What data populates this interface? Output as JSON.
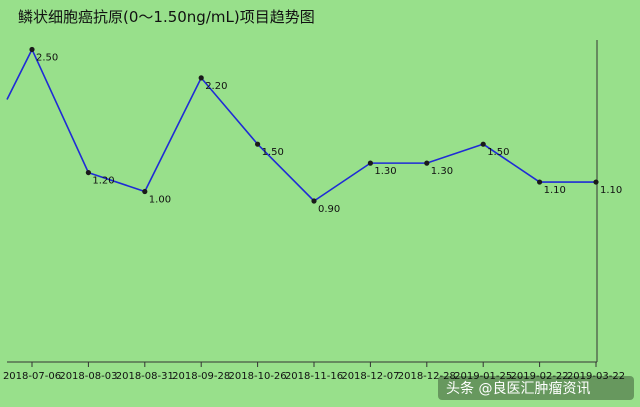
{
  "chart_data": {
    "type": "line",
    "title": "鳞状细胞癌抗原(0～1.50ng/mL)项目趋势图",
    "x": [
      "2018-07-06",
      "2018-08-03",
      "2018-08-31",
      "2018-09-28",
      "2018-10-26",
      "2018-11-16",
      "2018-12-07",
      "2018-12-28",
      "2019-01-25",
      "2019-02-22",
      "2019-03-22"
    ],
    "series": [
      {
        "values": [
          2.5,
          1.2,
          1.0,
          2.2,
          1.5,
          0.9,
          1.3,
          1.3,
          1.5,
          1.1,
          1.1
        ]
      }
    ],
    "data_labels": [
      "2.50",
      "1.20",
      "1.00",
      "2.20",
      "1.50",
      "0.90",
      "1.30",
      "1.30",
      "1.50",
      "1.10",
      "1.10"
    ],
    "ylim": [
      -0.8,
      2.6
    ],
    "grid": false,
    "legend": "none",
    "colors": {
      "background": "#98e08b",
      "line": "#1f2bd6",
      "marker": "#1a1a1a",
      "axis": "#333333"
    }
  },
  "watermark": {
    "text": "头条 @良医汇肿瘤资讯"
  }
}
